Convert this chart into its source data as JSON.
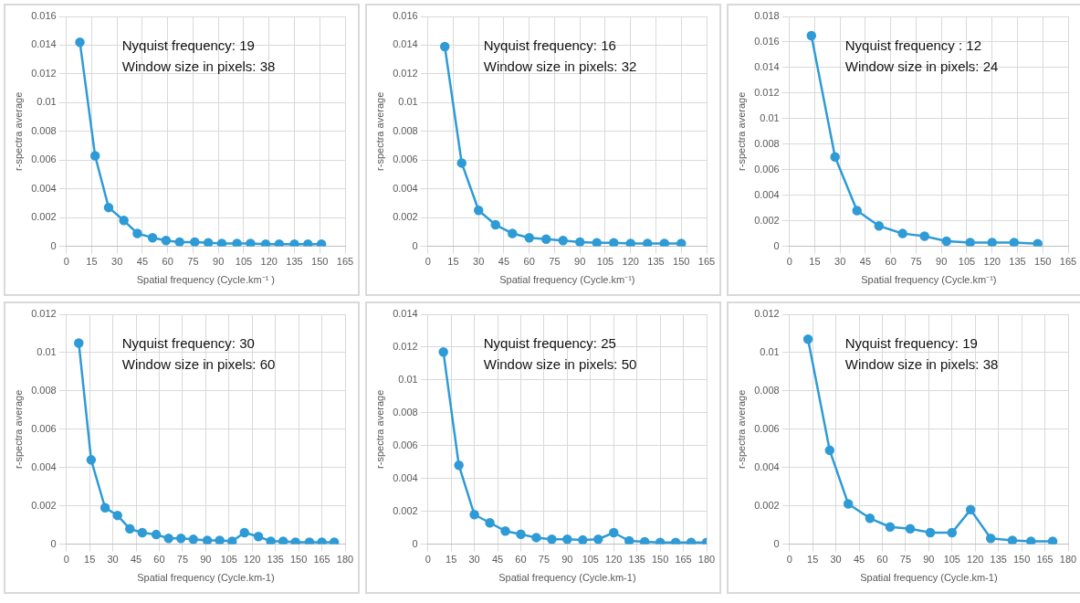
{
  "chart_data": [
    {
      "type": "line",
      "xlabel": "Spatial frequency (Cycle.km⁻¹ )",
      "ylabel": "r-spectra average",
      "annotations": [
        "Nyquist frequency: 19",
        "Window size in pixels: 38"
      ],
      "marker": "circle",
      "grid": true,
      "xlim": [
        0,
        165
      ],
      "xticks": [
        0,
        15,
        30,
        45,
        60,
        75,
        90,
        105,
        120,
        135,
        150,
        165
      ],
      "ylim": [
        0,
        0.016
      ],
      "yticks": [
        0,
        0.002,
        0.004,
        0.006,
        0.008,
        0.01,
        0.012,
        0.014,
        0.016
      ],
      "series": [
        {
          "color": "#2e9bd6",
          "x": [
            8,
            17,
            25,
            34,
            42,
            51,
            59,
            67,
            76,
            84,
            92,
            101,
            109,
            118,
            126,
            135,
            143,
            151
          ],
          "values": [
            0.0142,
            0.0063,
            0.0027,
            0.0018,
            0.0009,
            0.0006,
            0.0004,
            0.0003,
            0.0003,
            0.00025,
            0.0002,
            0.0002,
            0.0002,
            0.00015,
            0.00015,
            0.00015,
            0.00015,
            0.00015
          ]
        }
      ]
    },
    {
      "type": "line",
      "xlabel": "Spatial frequency (Cycle.km⁻¹)",
      "ylabel": "r-spectra average",
      "annotations": [
        "Nyquist frequency: 16",
        "Window size in pixels: 32"
      ],
      "marker": "circle",
      "grid": true,
      "xlim": [
        0,
        165
      ],
      "xticks": [
        0,
        15,
        30,
        45,
        60,
        75,
        90,
        105,
        120,
        135,
        150,
        165
      ],
      "ylim": [
        0,
        0.016
      ],
      "yticks": [
        0,
        0.002,
        0.004,
        0.006,
        0.008,
        0.01,
        0.012,
        0.014,
        0.016
      ],
      "series": [
        {
          "color": "#2e9bd6",
          "x": [
            10,
            20,
            30,
            40,
            50,
            60,
            70,
            80,
            90,
            100,
            110,
            120,
            130,
            140,
            150
          ],
          "values": [
            0.0139,
            0.0058,
            0.0025,
            0.0015,
            0.0009,
            0.0006,
            0.0005,
            0.0004,
            0.0003,
            0.00025,
            0.00025,
            0.0002,
            0.0002,
            0.0002,
            0.0002
          ]
        }
      ]
    },
    {
      "type": "line",
      "xlabel": "Spatial frequency (Cycle.km⁻¹)",
      "ylabel": "r-spectra average",
      "annotations": [
        "Nyquist frequency : 12",
        "Window size in pixels: 24"
      ],
      "marker": "circle",
      "grid": true,
      "xlim": [
        0,
        165
      ],
      "xticks": [
        0,
        15,
        30,
        45,
        60,
        75,
        90,
        105,
        120,
        135,
        150,
        165
      ],
      "ylim": [
        0,
        0.018
      ],
      "yticks": [
        0,
        0.002,
        0.004,
        0.006,
        0.008,
        0.01,
        0.012,
        0.014,
        0.016,
        0.018
      ],
      "series": [
        {
          "color": "#2e9bd6",
          "x": [
            13,
            27,
            40,
            53,
            67,
            80,
            93,
            107,
            120,
            133,
            147
          ],
          "values": [
            0.0165,
            0.007,
            0.0028,
            0.0016,
            0.001,
            0.0008,
            0.0004,
            0.0003,
            0.0003,
            0.0003,
            0.0002
          ]
        }
      ]
    },
    {
      "type": "line",
      "xlabel": "Spatial frequency (Cycle.km-1)",
      "ylabel": "r-spectra average",
      "annotations": [
        "Nyquist frequency: 30",
        "Window size in pixels: 60"
      ],
      "marker": "circle",
      "grid": true,
      "xlim": [
        0,
        180
      ],
      "xticks": [
        0,
        15,
        30,
        45,
        60,
        75,
        90,
        105,
        120,
        135,
        150,
        165,
        180
      ],
      "ylim": [
        0,
        0.012
      ],
      "yticks": [
        0,
        0.002,
        0.004,
        0.006,
        0.008,
        0.01,
        0.012
      ],
      "series": [
        {
          "color": "#2e9bd6",
          "x": [
            8,
            16,
            25,
            33,
            41,
            49,
            58,
            66,
            74,
            82,
            91,
            99,
            107,
            115,
            124,
            132,
            140,
            148,
            157,
            165,
            173
          ],
          "values": [
            0.0105,
            0.0044,
            0.0019,
            0.0015,
            0.0008,
            0.0006,
            0.0005,
            0.0003,
            0.0003,
            0.00025,
            0.0002,
            0.0002,
            0.00015,
            0.0006,
            0.0004,
            0.00015,
            0.00015,
            0.0001,
            0.0001,
            0.0001,
            0.0001
          ]
        }
      ]
    },
    {
      "type": "line",
      "xlabel": "Spatial frequency (Cycle.km-1)",
      "ylabel": "r-spectra average",
      "annotations": [
        "Nyquist frequency: 25",
        "Window size in pixels: 50"
      ],
      "marker": "circle",
      "grid": true,
      "xlim": [
        0,
        180
      ],
      "xticks": [
        0,
        15,
        30,
        45,
        60,
        75,
        90,
        105,
        120,
        135,
        150,
        165,
        180
      ],
      "ylim": [
        0,
        0.014
      ],
      "yticks": [
        0,
        0.002,
        0.004,
        0.006,
        0.008,
        0.01,
        0.012,
        0.014
      ],
      "series": [
        {
          "color": "#2e9bd6",
          "x": [
            10,
            20,
            30,
            40,
            50,
            60,
            70,
            80,
            90,
            100,
            110,
            120,
            130,
            140,
            150,
            160,
            170,
            180
          ],
          "values": [
            0.0117,
            0.0048,
            0.0018,
            0.0013,
            0.0008,
            0.0006,
            0.0004,
            0.0003,
            0.0003,
            0.00025,
            0.0003,
            0.0007,
            0.0002,
            0.00015,
            0.0001,
            0.0001,
            0.0001,
            0.0001
          ]
        }
      ]
    },
    {
      "type": "line",
      "xlabel": "Spatial frequency (Cycle.km-1)",
      "ylabel": "r-spectra average",
      "annotations": [
        "Nyquist frequency: 19",
        "Window size in pixels: 38"
      ],
      "marker": "circle",
      "grid": true,
      "xlim": [
        0,
        180
      ],
      "xticks": [
        0,
        15,
        30,
        45,
        60,
        75,
        90,
        105,
        120,
        135,
        150,
        165,
        180
      ],
      "ylim": [
        0,
        0.012
      ],
      "yticks": [
        0,
        0.002,
        0.004,
        0.006,
        0.008,
        0.01,
        0.012
      ],
      "series": [
        {
          "color": "#2e9bd6",
          "x": [
            12,
            26,
            38,
            52,
            65,
            78,
            91,
            105,
            117,
            130,
            144,
            156,
            170
          ],
          "values": [
            0.0107,
            0.0049,
            0.0021,
            0.00135,
            0.0009,
            0.0008,
            0.0006,
            0.0006,
            0.0018,
            0.0003,
            0.0002,
            0.00015,
            0.00015
          ]
        }
      ]
    }
  ]
}
